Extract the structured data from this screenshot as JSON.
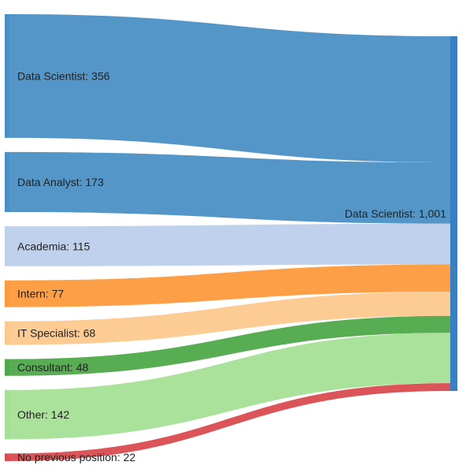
{
  "chart_data": {
    "type": "sankey",
    "title": "",
    "target": {
      "name": "Data Scientist",
      "value_label": "1,001",
      "value": 1001,
      "color": "#3a7fc1"
    },
    "sources": [
      {
        "name": "Data Scientist",
        "value": 356,
        "color": "#4a90c4",
        "label": "Data Scientist: 356"
      },
      {
        "name": "Data Analyst",
        "value": 173,
        "color": "#4a90c4",
        "label": "Data Analyst: 173"
      },
      {
        "name": "Academia",
        "value": 115,
        "color": "#bccfeb",
        "label": "Academia: 115"
      },
      {
        "name": "Intern",
        "value": 77,
        "color": "#fd9a3d",
        "label": "Intern: 77"
      },
      {
        "name": "IT Specialist",
        "value": 68,
        "color": "#fdc88e",
        "label": "IT Specialist: 68"
      },
      {
        "name": "Consultant",
        "value": 48,
        "color": "#4fa94a",
        "label": "Consultant: 48"
      },
      {
        "name": "Other",
        "value": 142,
        "color": "#a6e096",
        "label": "Other: 142"
      },
      {
        "name": "No previous position",
        "value": 22,
        "color": "#d94c4f",
        "label": "No previous position: 22"
      }
    ],
    "target_label": "Data Scientist: 1,001"
  }
}
